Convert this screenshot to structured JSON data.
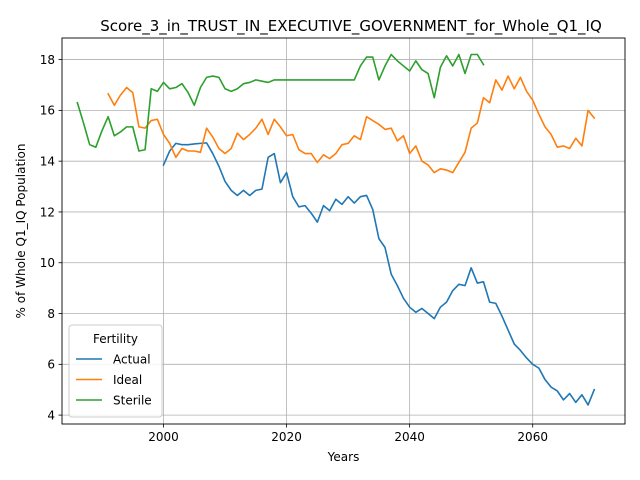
{
  "chart_data": {
    "type": "line",
    "title": "Score_3_in_TRUST_IN_EXECUTIVE_GOVERNMENT_for_Whole_Q1_IQ",
    "xlabel": "Years",
    "ylabel": "% of Whole Q1_IQ Population",
    "xlim": [
      1983.5,
      2075
    ],
    "ylim": [
      3.65,
      18.85
    ],
    "xticks": [
      2000,
      2020,
      2040,
      2060
    ],
    "yticks": [
      4,
      6,
      8,
      10,
      12,
      14,
      16,
      18
    ],
    "grid": true,
    "legend": {
      "title": "Fertility",
      "location": "lower-left"
    },
    "series": [
      {
        "name": "Actual",
        "color": "#1f77b4",
        "x": [
          2000,
          2001,
          2002,
          2003,
          2004,
          2005,
          2006,
          2007,
          2008,
          2009,
          2010,
          2011,
          2012,
          2013,
          2014,
          2015,
          2016,
          2017,
          2018,
          2019,
          2020,
          2021,
          2022,
          2023,
          2024,
          2025,
          2026,
          2027,
          2028,
          2029,
          2030,
          2031,
          2032,
          2033,
          2034,
          2035,
          2036,
          2037,
          2038,
          2039,
          2040,
          2041,
          2042,
          2043,
          2044,
          2045,
          2046,
          2047,
          2048,
          2049,
          2050,
          2051,
          2052,
          2053,
          2054,
          2055,
          2056,
          2057,
          2058,
          2059,
          2060,
          2061,
          2062,
          2063,
          2064,
          2065,
          2066,
          2067,
          2068,
          2069,
          2070
        ],
        "y": [
          13.85,
          14.4,
          14.7,
          14.65,
          14.65,
          14.68,
          14.7,
          14.72,
          14.3,
          13.8,
          13.2,
          12.85,
          12.65,
          12.85,
          12.65,
          12.85,
          12.9,
          14.15,
          14.3,
          13.15,
          13.55,
          12.6,
          12.2,
          12.25,
          11.95,
          11.6,
          12.25,
          12.05,
          12.5,
          12.3,
          12.6,
          12.35,
          12.6,
          12.65,
          12.1,
          10.95,
          10.6,
          9.55,
          9.1,
          8.6,
          8.25,
          8.05,
          8.2,
          8.0,
          7.8,
          8.25,
          8.45,
          8.9,
          9.15,
          9.1,
          9.8,
          9.2,
          9.25,
          8.45,
          8.4,
          7.9,
          7.35,
          6.8,
          6.55,
          6.25,
          6.0,
          5.85,
          5.4,
          5.1,
          4.95,
          4.6,
          4.85,
          4.5,
          4.8,
          4.4,
          5.0
        ]
      },
      {
        "name": "Ideal",
        "color": "#ff7f0e",
        "x": [
          1991,
          1992,
          1993,
          1994,
          1995,
          1996,
          1997,
          1998,
          1999,
          2000,
          2001,
          2002,
          2003,
          2004,
          2005,
          2006,
          2007,
          2008,
          2009,
          2010,
          2011,
          2012,
          2013,
          2014,
          2015,
          2016,
          2017,
          2018,
          2019,
          2020,
          2021,
          2022,
          2023,
          2024,
          2025,
          2026,
          2027,
          2028,
          2029,
          2030,
          2031,
          2032,
          2033,
          2034,
          2035,
          2036,
          2037,
          2038,
          2039,
          2040,
          2041,
          2042,
          2043,
          2044,
          2045,
          2046,
          2047,
          2048,
          2049,
          2050,
          2051,
          2052,
          2053,
          2054,
          2055,
          2056,
          2057,
          2058,
          2059,
          2060,
          2061,
          2062,
          2063,
          2064,
          2065,
          2066,
          2067,
          2068,
          2069,
          2070
        ],
        "y": [
          16.65,
          16.2,
          16.6,
          16.9,
          16.7,
          15.35,
          15.3,
          15.6,
          15.65,
          15.05,
          14.7,
          14.15,
          14.5,
          14.4,
          14.4,
          14.35,
          15.3,
          14.95,
          14.5,
          14.3,
          14.5,
          15.1,
          14.85,
          15.05,
          15.3,
          15.65,
          15.05,
          15.65,
          15.35,
          15.0,
          15.05,
          14.45,
          14.3,
          14.3,
          13.95,
          14.25,
          14.1,
          14.3,
          14.65,
          14.7,
          15.0,
          14.85,
          15.75,
          15.6,
          15.45,
          15.25,
          15.3,
          14.8,
          15.0,
          14.3,
          14.6,
          14.0,
          13.85,
          13.55,
          13.7,
          13.65,
          13.55,
          13.95,
          14.35,
          15.3,
          15.5,
          16.5,
          16.3,
          17.2,
          16.8,
          17.35,
          16.85,
          17.3,
          16.75,
          16.4,
          15.85,
          15.35,
          15.05,
          14.55,
          14.6,
          14.5,
          14.9,
          14.6,
          16.0,
          15.7
        ]
      },
      {
        "name": "Sterile",
        "color": "#2ca02c",
        "x": [
          1986,
          1987,
          1988,
          1989,
          1990,
          1991,
          1992,
          1993,
          1994,
          1995,
          1996,
          1997,
          1998,
          1999,
          2000,
          2001,
          2002,
          2003,
          2004,
          2005,
          2006,
          2007,
          2008,
          2009,
          2010,
          2011,
          2012,
          2013,
          2014,
          2015,
          2016,
          2017,
          2018,
          2019,
          2020,
          2021,
          2022,
          2023,
          2024,
          2025,
          2026,
          2027,
          2028,
          2029,
          2030,
          2031,
          2032,
          2033,
          2034,
          2035,
          2036,
          2037,
          2038,
          2039,
          2040,
          2041,
          2042,
          2043,
          2044,
          2045,
          2046,
          2047,
          2048,
          2049,
          2050,
          2051,
          2052
        ],
        "y": [
          16.3,
          15.5,
          14.65,
          14.55,
          15.2,
          15.75,
          15.0,
          15.15,
          15.35,
          15.35,
          14.4,
          14.45,
          16.85,
          16.75,
          17.1,
          16.85,
          16.9,
          17.05,
          16.7,
          16.2,
          16.9,
          17.3,
          17.35,
          17.3,
          16.85,
          16.75,
          16.85,
          17.05,
          17.1,
          17.2,
          17.15,
          17.1,
          17.2,
          17.2,
          17.2,
          17.2,
          17.2,
          17.2,
          17.2,
          17.2,
          17.2,
          17.2,
          17.2,
          17.2,
          17.2,
          17.2,
          17.75,
          18.1,
          18.1,
          17.2,
          17.75,
          18.2,
          17.95,
          17.75,
          17.55,
          17.95,
          17.6,
          17.45,
          16.5,
          17.7,
          18.15,
          17.75,
          18.2,
          17.45,
          18.2,
          18.2,
          17.8
        ]
      }
    ]
  }
}
